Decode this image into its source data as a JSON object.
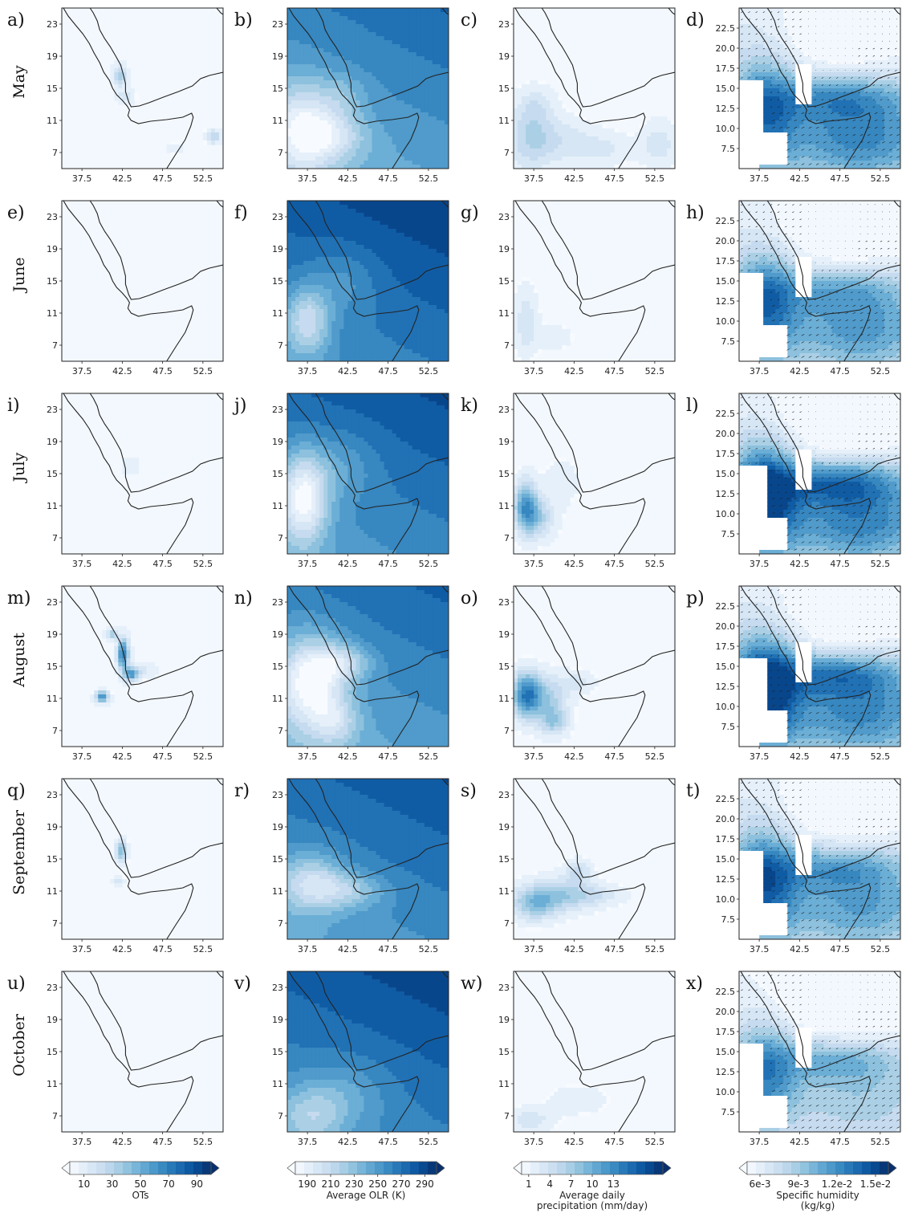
{
  "chart_data": {
    "type": "heatmap",
    "rows": [
      {
        "month": "May",
        "panel_labels": [
          "a)",
          "b)",
          "c)",
          "d)"
        ]
      },
      {
        "month": "June",
        "panel_labels": [
          "e)",
          "f)",
          "g)",
          "h)"
        ]
      },
      {
        "month": "July",
        "panel_labels": [
          "i)",
          "j)",
          "k)",
          "l)"
        ]
      },
      {
        "month": "August",
        "panel_labels": [
          "m)",
          "n)",
          "o)",
          "p)"
        ]
      },
      {
        "month": "September",
        "panel_labels": [
          "q)",
          "r)",
          "s)",
          "t)"
        ]
      },
      {
        "month": "October",
        "panel_labels": [
          "u)",
          "v)",
          "w)",
          "x)"
        ]
      }
    ],
    "columns": [
      {
        "variable": "OTs",
        "colorbar_label": [
          "OTs"
        ],
        "colorbar_ticks": [
          "10",
          "30",
          "50",
          "70",
          "90"
        ],
        "range": [
          0,
          100
        ],
        "y_ticks": [
          "23",
          "19",
          "15",
          "11",
          "7"
        ],
        "x_ticks": [
          "37.5",
          "42.5",
          "47.5",
          "52.5"
        ]
      },
      {
        "variable": "Average OLR (K)",
        "colorbar_label": [
          "Average OLR (K)"
        ],
        "colorbar_ticks": [
          "190",
          "210",
          "230",
          "250",
          "270",
          "290"
        ],
        "range": [
          180,
          300
        ],
        "y_ticks": [
          "23",
          "19",
          "15",
          "11",
          "7"
        ],
        "x_ticks": [
          "37.5",
          "42.5",
          "47.5",
          "52.5"
        ]
      },
      {
        "variable": "Average daily precipitation (mm/day)",
        "colorbar_label": [
          "Average daily",
          "precipitation (mm/day)"
        ],
        "colorbar_ticks": [
          "1",
          "4",
          "7",
          "10",
          "13"
        ],
        "range": [
          0,
          20
        ],
        "y_ticks": [
          "23",
          "19",
          "15",
          "11",
          "7"
        ],
        "x_ticks": [
          "37.5",
          "42.5",
          "47.5",
          "52.5"
        ]
      },
      {
        "variable": "Specific humidity (kg/kg)",
        "colorbar_label": [
          "Specific humidity",
          "(kg/kg)"
        ],
        "colorbar_ticks": [
          "6e-3",
          "9e-3",
          "1.2e-2",
          "1.5e-2"
        ],
        "range": [
          0.005,
          0.016
        ],
        "y_ticks": [
          "22.5",
          "20.0",
          "17.5",
          "15.0",
          "12.5",
          "10.0",
          "7.5"
        ],
        "x_ticks": [
          "37.5",
          "42.5",
          "47.5",
          "52.5"
        ],
        "wind_vectors": true
      }
    ],
    "axes": {
      "lon_range": [
        35,
        55
      ],
      "lat_range": [
        5,
        25
      ]
    },
    "colormap": "Blues",
    "colors": {
      "low": "#f7fbff",
      "high": "#08306b",
      "mask": "#ffffff"
    }
  }
}
